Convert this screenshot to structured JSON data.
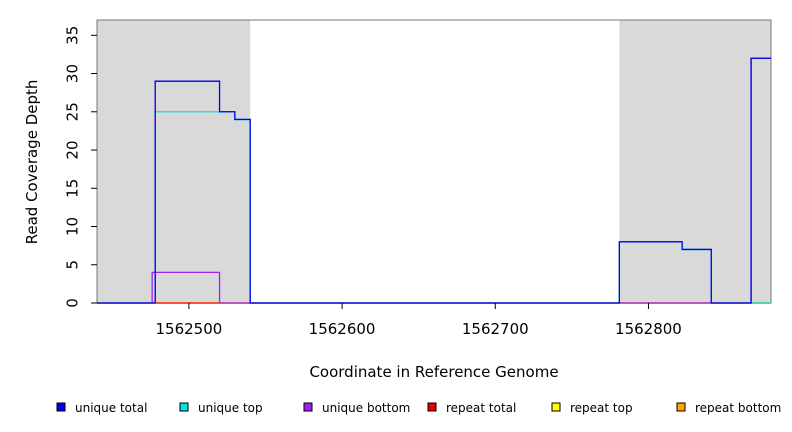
{
  "chart_data": {
    "type": "line",
    "title": "",
    "xlabel": "Coordinate in Reference Genome",
    "ylabel": "Read Coverage Depth",
    "xlim": [
      1562440,
      1562880
    ],
    "ylim": [
      0,
      37
    ],
    "x_ticks": [
      1562500,
      1562600,
      1562700,
      1562800
    ],
    "x_tick_labels": [
      "1562500",
      "1562600",
      "1562700",
      "1562800"
    ],
    "y_ticks": [
      0,
      5,
      10,
      15,
      20,
      25,
      30,
      35
    ],
    "y_tick_labels": [
      "0",
      "5",
      "10",
      "15",
      "20",
      "25",
      "30",
      "35"
    ],
    "shaded_regions": [
      {
        "x_start": 1562440,
        "x_end": 1562540,
        "color": "#d9d9d9"
      },
      {
        "x_start": 1562781,
        "x_end": 1562880,
        "color": "#d9d9d9"
      }
    ],
    "series": [
      {
        "name": "unique total",
        "color": "#0000ee",
        "step": true,
        "points": [
          [
            1562440,
            0
          ],
          [
            1562478,
            0
          ],
          [
            1562478,
            29
          ],
          [
            1562520,
            29
          ],
          [
            1562520,
            25
          ],
          [
            1562530,
            25
          ],
          [
            1562530,
            24
          ],
          [
            1562540,
            24
          ],
          [
            1562540,
            0
          ],
          [
            1562781,
            0
          ],
          [
            1562781,
            8
          ],
          [
            1562822,
            8
          ],
          [
            1562822,
            7
          ],
          [
            1562841,
            7
          ],
          [
            1562841,
            0
          ],
          [
            1562867,
            0
          ],
          [
            1562867,
            32
          ],
          [
            1562880,
            32
          ]
        ]
      },
      {
        "name": "unique top",
        "color": "#00e5e5",
        "step": true,
        "points": [
          [
            1562440,
            0
          ],
          [
            1562478,
            0
          ],
          [
            1562478,
            25
          ],
          [
            1562520,
            25
          ],
          [
            1562520,
            25
          ],
          [
            1562530,
            25
          ],
          [
            1562530,
            24
          ],
          [
            1562540,
            24
          ],
          [
            1562540,
            0
          ],
          [
            1562781,
            0
          ],
          [
            1562781,
            8
          ],
          [
            1562822,
            8
          ],
          [
            1562822,
            7
          ],
          [
            1562841,
            7
          ],
          [
            1562841,
            0
          ],
          [
            1562880,
            0
          ]
        ]
      },
      {
        "name": "unique bottom",
        "color": "#a020f0",
        "step": true,
        "points": [
          [
            1562440,
            0
          ],
          [
            1562476,
            0
          ],
          [
            1562476,
            4
          ],
          [
            1562520,
            4
          ],
          [
            1562520,
            0
          ],
          [
            1562867,
            0
          ],
          [
            1562867,
            32
          ],
          [
            1562880,
            32
          ]
        ]
      },
      {
        "name": "repeat total",
        "color": "#ee0000",
        "step": true,
        "points": [
          [
            1562440,
            0
          ],
          [
            1562880,
            0
          ]
        ]
      },
      {
        "name": "repeat top",
        "color": "#ffff00",
        "step": true,
        "points": [
          [
            1562440,
            0
          ],
          [
            1562880,
            0
          ]
        ]
      },
      {
        "name": "repeat bottom",
        "color": "#ffa500",
        "step": true,
        "points": [
          [
            1562440,
            0
          ],
          [
            1562880,
            0
          ]
        ]
      }
    ],
    "legend": {
      "placement": "bottom",
      "entries": [
        {
          "label": "unique total",
          "color": "#0000ee"
        },
        {
          "label": "unique top",
          "color": "#00e5e5"
        },
        {
          "label": "unique bottom",
          "color": "#a020f0"
        },
        {
          "label": "repeat total",
          "color": "#ee0000"
        },
        {
          "label": "repeat top",
          "color": "#ffff00"
        },
        {
          "label": "repeat bottom",
          "color": "#ffa500"
        }
      ]
    },
    "grid": false
  }
}
